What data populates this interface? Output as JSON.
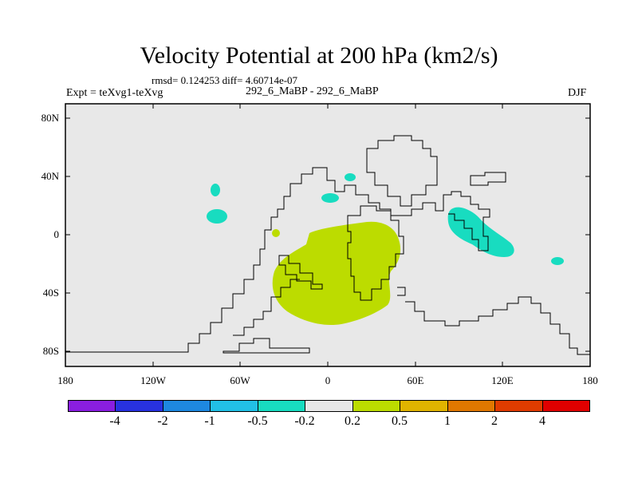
{
  "header": {
    "title": "Velocity Potential at 200 hPa (km2/s)",
    "stats": "rmsd= 0.124253  diff= 4.60714e-07",
    "expt": "Expt = teXvg1-teXvg",
    "case": "292_6_MaBP - 292_6_MaBP",
    "season": "DJF"
  },
  "axes": {
    "y_ticks": [
      "80N",
      "40N",
      "0",
      "40S",
      "80S"
    ],
    "x_ticks": [
      "180",
      "120W",
      "60W",
      "0",
      "60E",
      "120E",
      "180"
    ]
  },
  "colorbar": {
    "colors": [
      "#8a1ee0",
      "#2832e0",
      "#1e88e0",
      "#22c0e6",
      "#18dcc0",
      "#e8e8e8",
      "#bcdc00",
      "#e0b400",
      "#e07800",
      "#e03c00",
      "#e00000"
    ],
    "labels": [
      "-4",
      "-2",
      "-1",
      "-0.5",
      "-0.2",
      "0.2",
      "0.5",
      "1",
      "2",
      "4"
    ]
  },
  "map": {
    "background": "#e8e8e8",
    "positive_color": "#bcdc00",
    "negative_color": "#18dcc0",
    "coastline_color": "#000000"
  }
}
